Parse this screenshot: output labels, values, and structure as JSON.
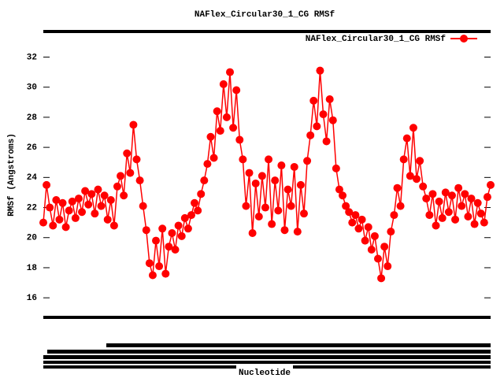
{
  "chart_data": {
    "type": "line",
    "title": "NAFlex_Circular30_1_CG RMSf",
    "x_label": "Nucleotide",
    "y_label": "RMSf (Angstroms)",
    "xlim": [
      1,
      140
    ],
    "ylim": [
      14.7,
      33.7
    ],
    "yticks": [
      16,
      18,
      20,
      22,
      24,
      26,
      28,
      30,
      32
    ],
    "legend": "top-right",
    "series": [
      {
        "name": "NAFlex_Circular30_1_CG RMSf",
        "color": "#ff0000",
        "x": [
          1,
          2,
          3,
          4,
          5,
          6,
          7,
          8,
          9,
          10,
          11,
          12,
          13,
          14,
          15,
          16,
          17,
          18,
          19,
          20,
          21,
          22,
          23,
          24,
          25,
          26,
          27,
          28,
          29,
          30,
          31,
          32,
          33,
          34,
          35,
          36,
          37,
          38,
          39,
          40,
          41,
          42,
          43,
          44,
          45,
          46,
          47,
          48,
          49,
          50,
          51,
          52,
          53,
          54,
          55,
          56,
          57,
          58,
          59,
          60,
          61,
          62,
          63,
          64,
          65,
          66,
          67,
          68,
          69,
          70,
          71,
          72,
          73,
          74,
          75,
          76,
          77,
          78,
          79,
          80,
          81,
          82,
          83,
          84,
          85,
          86,
          87,
          88,
          89,
          90,
          91,
          92,
          93,
          94,
          95,
          96,
          97,
          98,
          99,
          100,
          101,
          102,
          103,
          104,
          105,
          106,
          107,
          108,
          109,
          110,
          111,
          112,
          113,
          114,
          115,
          116,
          117,
          118,
          119,
          120,
          121,
          122,
          123,
          124,
          125,
          126,
          127,
          128,
          129,
          130,
          131,
          132,
          133,
          134,
          135,
          136,
          137,
          138,
          139,
          140
        ],
        "values": [
          21,
          23.5,
          22,
          20.8,
          22.5,
          21.2,
          22.3,
          20.7,
          21.8,
          22.4,
          21.3,
          22.6,
          21.7,
          23.1,
          22.2,
          22.9,
          21.6,
          23.2,
          22.1,
          22.8,
          21.2,
          22.5,
          20.8,
          23.4,
          24.1,
          22.8,
          25.6,
          24.3,
          27.5,
          25.2,
          23.8,
          22.1,
          20.5,
          18.3,
          17.5,
          19.8,
          18.1,
          20.6,
          17.6,
          19.4,
          20.3,
          19.2,
          20.8,
          20.1,
          21.3,
          20.6,
          21.5,
          22.3,
          21.8,
          22.9,
          23.8,
          24.9,
          26.7,
          25.3,
          28.4,
          27.1,
          30.2,
          28.0,
          31.0,
          27.3,
          29.8,
          26.5,
          25.2,
          22.1,
          24.3,
          20.3,
          23.6,
          21.4,
          24.1,
          22.0,
          25.2,
          20.9,
          23.8,
          21.8,
          24.8,
          20.5,
          23.2,
          22.1,
          24.7,
          20.4,
          23.5,
          21.6,
          25.1,
          26.8,
          29.1,
          27.4,
          31.1,
          28.2,
          26.4,
          29.2,
          27.8,
          24.6,
          23.2,
          22.8,
          22.1,
          21.7,
          21.0,
          21.5,
          20.6,
          21.2,
          19.8,
          20.7,
          19.2,
          20.1,
          18.6,
          17.3,
          19.4,
          18.1,
          20.4,
          21.5,
          23.3,
          22.1,
          25.2,
          26.6,
          24.1,
          27.3,
          23.9,
          25.1,
          23.4,
          22.6,
          21.5,
          22.9,
          20.8,
          22.4,
          21.3,
          23.0,
          21.7,
          22.8,
          21.2,
          23.3,
          22.1,
          22.9,
          21.4,
          22.6,
          20.9,
          22.3,
          21.6,
          21.0,
          22.7,
          23.5
        ]
      }
    ]
  }
}
